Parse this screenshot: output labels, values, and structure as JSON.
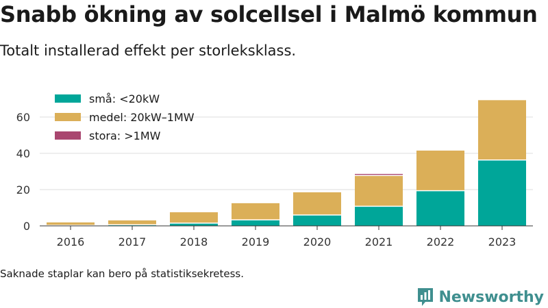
{
  "title": "Snabb ökning av solcellsel i Malmö kommun",
  "subtitle": "Totalt installerad effekt per storleksklass.",
  "footnote": "Saknade staplar kan bero på statistiksekretess.",
  "brand": {
    "name": "Newsworthy",
    "icon": "newsworthy-logo-icon",
    "color": "#3f8f8f"
  },
  "chart_data": {
    "type": "bar",
    "stacked": true,
    "categories": [
      "2016",
      "2017",
      "2018",
      "2019",
      "2020",
      "2021",
      "2022",
      "2023"
    ],
    "series": [
      {
        "name": "små: <20kW",
        "color": "#00a699",
        "values": [
          0.3,
          0.6,
          1.5,
          3.3,
          6.0,
          10.8,
          19.4,
          36.3
        ]
      },
      {
        "name": "medel: 20kW–1MW",
        "color": "#dbaf58",
        "values": [
          1.6,
          2.4,
          6.0,
          9.2,
          12.5,
          17.0,
          22.1,
          33.0
        ]
      },
      {
        "name": "stora: >1MW",
        "color": "#a9466f",
        "values": [
          0,
          0,
          0,
          0,
          0,
          0.8,
          0,
          0
        ]
      }
    ],
    "yticks": [
      0,
      20,
      40,
      60
    ],
    "ylim": [
      0,
      70
    ],
    "xlabel": "",
    "ylabel": "",
    "grid": true,
    "legend_position": "top-left"
  }
}
